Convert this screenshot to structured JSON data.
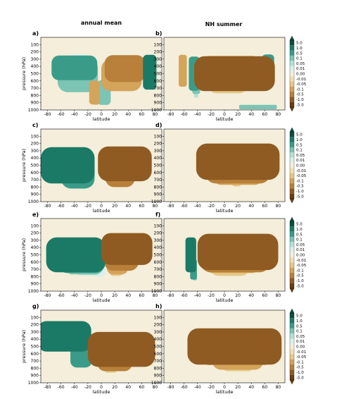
{
  "chart_data": {
    "type": "heatmap",
    "column_titles": [
      "annual mean",
      "NH summer"
    ],
    "panel_labels": [
      "a)",
      "b)",
      "c)",
      "d)",
      "e)",
      "f)",
      "g)",
      "h)"
    ],
    "xlabel": "latitude",
    "ylabel": "pressure (hPa)",
    "x_ticks": [
      -80,
      -60,
      -40,
      -20,
      0,
      20,
      40,
      60,
      80
    ],
    "y_ticks": [
      100,
      200,
      300,
      400,
      500,
      600,
      700,
      800,
      900,
      1000
    ],
    "xlim": [
      -90,
      90
    ],
    "ylim": [
      1000,
      0
    ],
    "colorbar_levels": [
      "5.0",
      "1.0",
      "0.5",
      "0.1",
      "0.05",
      "0.01",
      "0.00",
      "-0.01",
      "-0.05",
      "-0.1",
      "-0.5",
      "-1.0",
      "-5.0"
    ],
    "colorbar_colors": [
      "#0b4f3e",
      "#1b7a66",
      "#3a9c88",
      "#7cc4b3",
      "#b4e0d4",
      "#dbf0ea",
      "#f4eedb",
      "#f1dfb5",
      "#e6c887",
      "#d4a45b",
      "#b8803a",
      "#8f5b22",
      "#6a3e13"
    ],
    "panels": [
      {
        "id": "a",
        "row": 0,
        "col": 0,
        "x_ticks_visible": true,
        "blobs": [
          {
            "lat": -40,
            "p": 420,
            "w": 34,
            "h": 340,
            "level": 4
          },
          {
            "lat": -35,
            "p": 520,
            "w": 30,
            "h": 470,
            "level": 3
          },
          {
            "lat": -35,
            "p": 540,
            "w": 25,
            "h": 420,
            "level": 2
          },
          {
            "lat": -32,
            "p": 400,
            "w": 17,
            "h": 330,
            "level": 1
          },
          {
            "lat": 4,
            "p": 840,
            "w": 6,
            "h": 150,
            "level": 1
          },
          {
            "lat": 4,
            "p": 760,
            "w": 10,
            "h": 340,
            "level": 3
          },
          {
            "lat": 35,
            "p": 430,
            "w": 30,
            "h": 370,
            "level": -4
          },
          {
            "lat": 30,
            "p": 520,
            "w": 30,
            "h": 440,
            "level": -3
          },
          {
            "lat": 30,
            "p": 540,
            "w": 24,
            "h": 400,
            "level": -2
          },
          {
            "lat": 30,
            "p": 420,
            "w": 17,
            "h": 330,
            "level": -1
          },
          {
            "lat": -10,
            "p": 760,
            "w": 8,
            "h": 330,
            "level": -3
          },
          {
            "lat": -8,
            "p": 880,
            "w": 4,
            "h": 100,
            "level": -2
          },
          {
            "lat": 72,
            "p": 480,
            "w": 10,
            "h": 480,
            "level": 5
          }
        ]
      },
      {
        "id": "b",
        "row": 0,
        "col": 1,
        "x_ticks_visible": false,
        "blobs": [
          {
            "lat": 15,
            "p": 500,
            "w": 60,
            "h": 480,
            "level": -5
          },
          {
            "lat": 12,
            "p": 500,
            "w": 52,
            "h": 460,
            "level": -4
          },
          {
            "lat": 10,
            "p": 470,
            "w": 45,
            "h": 430,
            "level": -3
          },
          {
            "lat": 5,
            "p": 560,
            "w": 30,
            "h": 420,
            "level": -2
          },
          {
            "lat": 3,
            "p": 600,
            "w": 18,
            "h": 330,
            "level": -1
          },
          {
            "lat": -45,
            "p": 500,
            "w": 8,
            "h": 470,
            "level": 4
          },
          {
            "lat": -42,
            "p": 620,
            "w": 6,
            "h": 320,
            "level": 3
          },
          {
            "lat": -42,
            "p": 720,
            "w": 3,
            "h": 220,
            "level": 2
          },
          {
            "lat": 65,
            "p": 460,
            "w": 9,
            "h": 450,
            "level": 4
          },
          {
            "lat": 65,
            "p": 460,
            "w": 6,
            "h": 360,
            "level": 3
          },
          {
            "lat": -62,
            "p": 460,
            "w": 6,
            "h": 440,
            "level": -3
          },
          {
            "lat": 50,
            "p": 960,
            "w": 28,
            "h": 60,
            "level": 3
          }
        ]
      },
      {
        "id": "c",
        "row": 1,
        "col": 0,
        "x_ticks_visible": true,
        "blobs": [
          {
            "lat": -50,
            "p": 500,
            "w": 40,
            "h": 500,
            "level": 5
          },
          {
            "lat": -35,
            "p": 580,
            "w": 25,
            "h": 480,
            "level": 4
          },
          {
            "lat": -25,
            "p": 620,
            "w": 14,
            "h": 360,
            "level": 3
          },
          {
            "lat": -22,
            "p": 680,
            "w": 8,
            "h": 200,
            "level": 2
          },
          {
            "lat": -20,
            "p": 700,
            "w": 4,
            "h": 110,
            "level": 1
          },
          {
            "lat": 35,
            "p": 480,
            "w": 40,
            "h": 480,
            "level": -5
          },
          {
            "lat": 28,
            "p": 580,
            "w": 22,
            "h": 440,
            "level": -4
          },
          {
            "lat": 22,
            "p": 650,
            "w": 12,
            "h": 280,
            "level": -3
          },
          {
            "lat": 18,
            "p": 700,
            "w": 6,
            "h": 140,
            "level": -2
          }
        ]
      },
      {
        "id": "d",
        "row": 1,
        "col": 1,
        "x_ticks_visible": false,
        "blobs": [
          {
            "lat": 20,
            "p": 450,
            "w": 62,
            "h": 500,
            "level": -5
          },
          {
            "lat": 20,
            "p": 520,
            "w": 48,
            "h": 460,
            "level": -4
          },
          {
            "lat": 20,
            "p": 560,
            "w": 38,
            "h": 420,
            "level": -3
          },
          {
            "lat": 18,
            "p": 710,
            "w": 7,
            "h": 160,
            "level": -2
          }
        ]
      },
      {
        "id": "e",
        "row": 2,
        "col": 0,
        "x_ticks_visible": true,
        "blobs": [
          {
            "lat": -38,
            "p": 500,
            "w": 44,
            "h": 480,
            "level": 5
          },
          {
            "lat": -30,
            "p": 520,
            "w": 36,
            "h": 460,
            "level": 4
          },
          {
            "lat": -26,
            "p": 560,
            "w": 30,
            "h": 420,
            "level": 3
          },
          {
            "lat": -20,
            "p": 600,
            "w": 22,
            "h": 360,
            "level": 2
          },
          {
            "lat": -4,
            "p": 650,
            "w": 10,
            "h": 300,
            "level": 1
          },
          {
            "lat": 2,
            "p": 760,
            "w": 5,
            "h": 180,
            "level": 0
          },
          {
            "lat": 38,
            "p": 420,
            "w": 38,
            "h": 440,
            "level": -5
          },
          {
            "lat": 30,
            "p": 500,
            "w": 26,
            "h": 440,
            "level": -4
          },
          {
            "lat": 24,
            "p": 580,
            "w": 16,
            "h": 380,
            "level": -3
          },
          {
            "lat": 22,
            "p": 640,
            "w": 10,
            "h": 300,
            "level": -2
          }
        ]
      },
      {
        "id": "f",
        "row": 2,
        "col": 1,
        "x_ticks_visible": false,
        "blobs": [
          {
            "lat": 20,
            "p": 460,
            "w": 60,
            "h": 500,
            "level": -5
          },
          {
            "lat": 16,
            "p": 500,
            "w": 52,
            "h": 480,
            "level": -4
          },
          {
            "lat": 12,
            "p": 520,
            "w": 44,
            "h": 460,
            "level": -3
          },
          {
            "lat": 8,
            "p": 580,
            "w": 30,
            "h": 420,
            "level": -2
          },
          {
            "lat": 5,
            "p": 620,
            "w": 20,
            "h": 330,
            "level": -1
          },
          {
            "lat": -50,
            "p": 500,
            "w": 8,
            "h": 480,
            "level": 5
          },
          {
            "lat": -46,
            "p": 700,
            "w": 5,
            "h": 280,
            "level": 4
          },
          {
            "lat": -44,
            "p": 760,
            "w": 3,
            "h": 180,
            "level": 3
          }
        ]
      },
      {
        "id": "g",
        "row": 3,
        "col": 0,
        "x_ticks_visible": true,
        "blobs": [
          {
            "lat": -55,
            "p": 360,
            "w": 40,
            "h": 420,
            "level": 5
          },
          {
            "lat": -30,
            "p": 580,
            "w": 16,
            "h": 420,
            "level": 4
          },
          {
            "lat": -28,
            "p": 600,
            "w": 8,
            "h": 300,
            "level": 3
          },
          {
            "lat": 30,
            "p": 540,
            "w": 50,
            "h": 480,
            "level": -5
          },
          {
            "lat": 20,
            "p": 660,
            "w": 26,
            "h": 360,
            "level": -4
          },
          {
            "lat": 18,
            "p": 720,
            "w": 18,
            "h": 240,
            "level": -3
          },
          {
            "lat": 14,
            "p": 780,
            "w": 10,
            "h": 160,
            "level": -2
          }
        ]
      },
      {
        "id": "h",
        "row": 3,
        "col": 1,
        "x_ticks_visible": false,
        "blobs": [
          {
            "lat": 15,
            "p": 500,
            "w": 70,
            "h": 500,
            "level": -5
          },
          {
            "lat": 18,
            "p": 520,
            "w": 56,
            "h": 470,
            "level": -4
          },
          {
            "lat": 20,
            "p": 620,
            "w": 38,
            "h": 400,
            "level": -3
          },
          {
            "lat": 20,
            "p": 700,
            "w": 24,
            "h": 280,
            "level": -2
          },
          {
            "lat": 18,
            "p": 760,
            "w": 10,
            "h": 160,
            "level": -1
          }
        ]
      }
    ]
  }
}
